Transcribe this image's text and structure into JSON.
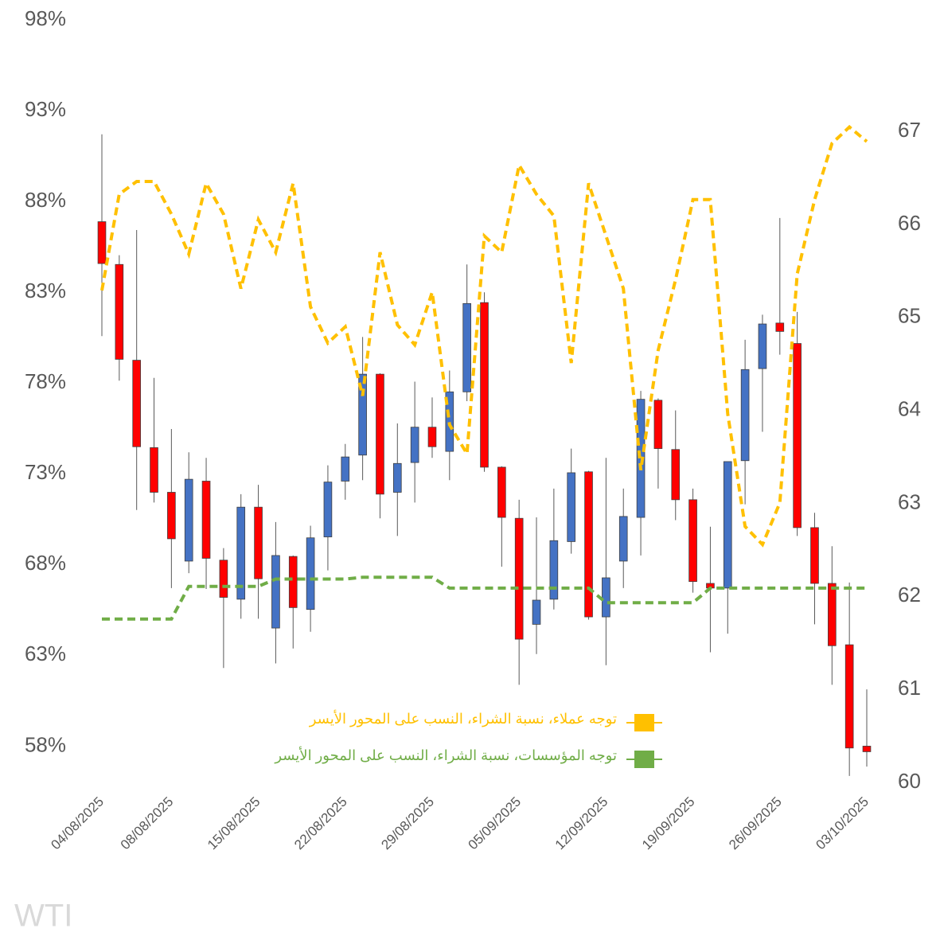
{
  "chart_data": {
    "type": "candlestick",
    "watermark": "WTI",
    "categories": [
      "04/08/2025",
      null,
      null,
      null,
      "08/08/2025",
      null,
      null,
      null,
      null,
      "15/08/2025",
      null,
      null,
      null,
      null,
      "22/08/2025",
      null,
      null,
      null,
      null,
      "29/08/2025",
      null,
      null,
      null,
      null,
      "05/09/2025",
      null,
      null,
      null,
      null,
      "12/09/2025",
      null,
      null,
      null,
      null,
      "19/09/2025",
      null,
      null,
      null,
      null,
      "26/09/2025",
      null,
      null,
      null,
      null,
      "03/10/2025"
    ],
    "ohlc": {
      "axis": "y2",
      "up_color": "#4472c4",
      "down_color": "#ff0000",
      "open": [
        66.03,
        65.57,
        64.54,
        63.6,
        63.12,
        62.38,
        63.24,
        62.39,
        61.97,
        62.96,
        61.66,
        62.43,
        61.86,
        62.64,
        63.24,
        63.52,
        64.39,
        63.12,
        63.44,
        63.82,
        63.56,
        64.2,
        65.16,
        63.39,
        62.84,
        61.7,
        61.97,
        62.59,
        63.34,
        61.78,
        62.38,
        62.85,
        64.11,
        63.58,
        63.04,
        62.14,
        62.09,
        63.46,
        64.45,
        64.94,
        64.72,
        62.74,
        62.14,
        61.48,
        60.39
      ],
      "high": [
        66.97,
        65.67,
        65.94,
        64.35,
        63.8,
        63.55,
        63.49,
        62.52,
        63.1,
        63.2,
        62.8,
        62.44,
        62.76,
        63.41,
        63.64,
        64.79,
        64.4,
        63.86,
        64.31,
        64.14,
        64.43,
        65.57,
        65.27,
        63.4,
        63.04,
        62.85,
        63.16,
        63.59,
        63.35,
        63.49,
        63.16,
        64.21,
        64.13,
        64.0,
        63.16,
        62.75,
        63.45,
        64.76,
        65.03,
        66.07,
        65.06,
        62.9,
        62.54,
        62.15,
        61.0
      ],
      "low": [
        64.8,
        64.32,
        62.93,
        63.01,
        62.09,
        62.25,
        62.08,
        61.23,
        61.76,
        61.76,
        61.28,
        61.44,
        61.62,
        62.28,
        63.04,
        63.25,
        62.84,
        62.65,
        63.01,
        63.49,
        63.25,
        64.1,
        63.34,
        62.32,
        61.05,
        61.38,
        61.86,
        62.46,
        61.75,
        61.26,
        62.09,
        62.44,
        63.16,
        62.82,
        62.04,
        61.4,
        61.6,
        62.99,
        63.77,
        64.6,
        62.65,
        61.7,
        61.05,
        60.07,
        60.17
      ],
      "close": [
        65.58,
        64.55,
        63.61,
        63.12,
        62.62,
        63.26,
        62.41,
        61.99,
        62.96,
        62.19,
        62.44,
        61.88,
        62.63,
        63.23,
        63.5,
        64.39,
        63.1,
        63.43,
        63.82,
        63.61,
        64.2,
        65.15,
        63.39,
        62.85,
        61.54,
        61.96,
        62.6,
        63.33,
        61.78,
        62.2,
        62.86,
        64.12,
        63.59,
        63.04,
        62.16,
        62.09,
        63.45,
        64.44,
        64.93,
        64.85,
        62.74,
        62.14,
        61.47,
        60.37,
        60.33
      ]
    },
    "series": [
      {
        "name": "توجه عملاء، نسبة الشراء، النسب على المحور الأيسر",
        "color": "#ffc000",
        "values": [
          83.1,
          88.4,
          89.1,
          89.1,
          87.3,
          85.1,
          89.0,
          87.3,
          83.2,
          87.0,
          85.2,
          89.0,
          82.2,
          80.2,
          81.1,
          77.3,
          85.2,
          81.2,
          80.1,
          83.0,
          75.7,
          74.1,
          86.1,
          85.2,
          90.0,
          88.4,
          87.2,
          79.1,
          89.0,
          86.1,
          83.2,
          73.2,
          79.8,
          83.7,
          88.1,
          88.1,
          76.3,
          70.1,
          69.1,
          71.4,
          84.0,
          88.1,
          91.2,
          92.1,
          91.3
        ]
      },
      {
        "name": "توجه المؤسسات، نسبة الشراء، النسب على المحور الأيسر",
        "color": "#70ad47",
        "values": [
          65.0,
          65.0,
          65.0,
          65.0,
          65.0,
          66.8,
          66.8,
          66.8,
          66.8,
          66.8,
          67.2,
          67.2,
          67.2,
          67.2,
          67.2,
          67.3,
          67.3,
          67.3,
          67.3,
          67.3,
          66.7,
          66.7,
          66.7,
          66.7,
          66.7,
          66.7,
          66.7,
          66.7,
          66.7,
          65.9,
          65.9,
          65.9,
          65.9,
          65.9,
          65.9,
          66.7,
          66.7,
          66.7,
          66.7,
          66.7,
          66.7,
          66.7,
          66.7,
          66.7,
          66.7
        ]
      }
    ],
    "line_style": "dashed",
    "ylim": [
      56,
      98
    ],
    "yticks": [
      {
        "value": 58,
        "label": "58%"
      },
      {
        "value": 63,
        "label": "63%"
      },
      {
        "value": 68,
        "label": "68%"
      },
      {
        "value": 73,
        "label": "73%"
      },
      {
        "value": 78,
        "label": "78%"
      },
      {
        "value": 83,
        "label": "83%"
      },
      {
        "value": 88,
        "label": "88%"
      },
      {
        "value": 93,
        "label": "93%"
      },
      {
        "value": 98,
        "label": "98%"
      }
    ],
    "y2lim": [
      60,
      68.2
    ],
    "y2ticks": [
      60,
      61,
      62,
      63,
      64,
      65,
      66,
      67
    ],
    "grid": false,
    "legend": "lower-right"
  }
}
